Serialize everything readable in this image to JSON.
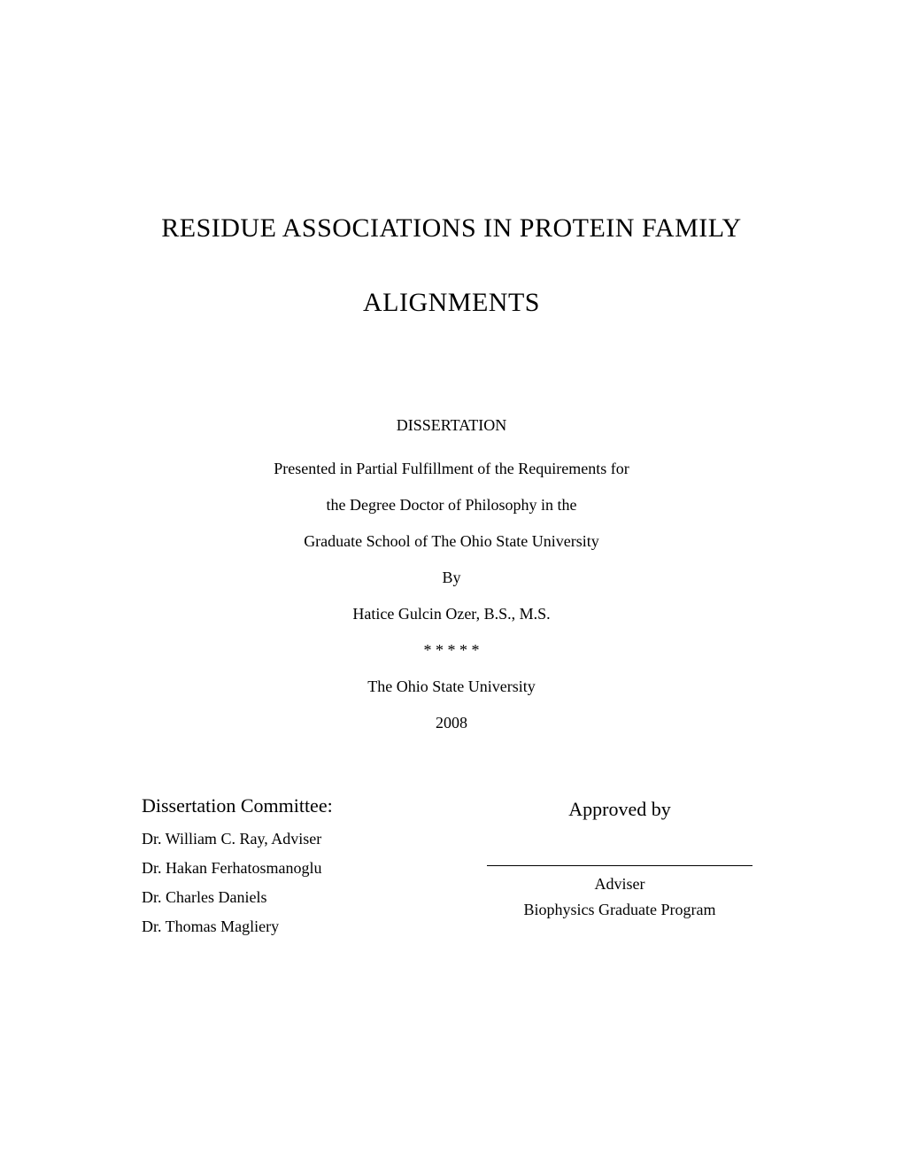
{
  "page": {
    "background_color": "#ffffff",
    "text_color": "#000000",
    "font_family": "Times New Roman"
  },
  "title": {
    "line1": "RESIDUE ASSOCIATIONS IN PROTEIN FAMILY",
    "line2": "ALIGNMENTS",
    "fontsize": 30
  },
  "middle": {
    "heading": "DISSERTATION",
    "line1": "Presented in Partial Fulfillment of the Requirements for",
    "line2": "the Degree Doctor of Philosophy in the",
    "line3": "Graduate School of The Ohio State University",
    "by_label": "By",
    "author": "Hatice Gulcin Ozer, B.S., M.S.",
    "separator": "* * * * *",
    "institution": "The Ohio State University",
    "year": "2008",
    "fontsize": 18
  },
  "committee": {
    "heading": "Dissertation Committee:",
    "heading_fontsize": 22,
    "members": [
      "Dr. William C. Ray, Adviser",
      "Dr. Hakan Ferhatosmanoglu",
      "Dr. Charles Daniels",
      "Dr. Thomas Magliery"
    ],
    "member_fontsize": 18
  },
  "approval": {
    "heading": "Approved by",
    "heading_fontsize": 22,
    "adviser_label": "Adviser",
    "program": "Biophysics Graduate Program",
    "label_fontsize": 18,
    "signature_line_color": "#000000"
  }
}
